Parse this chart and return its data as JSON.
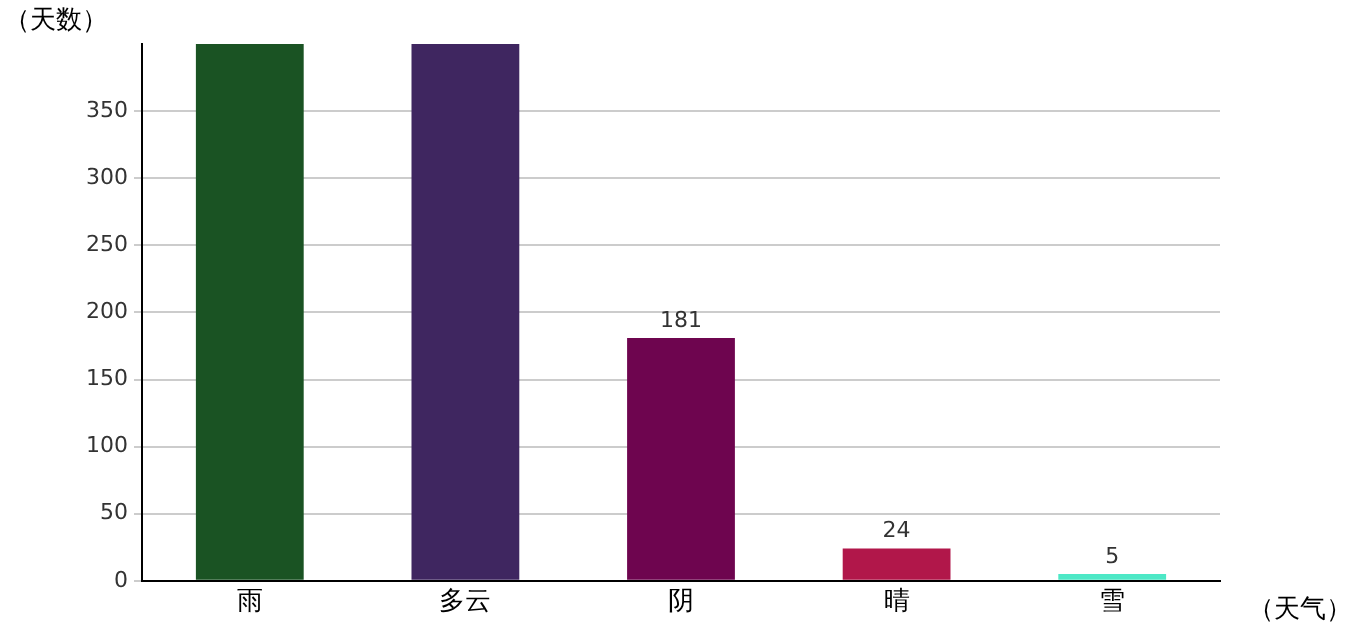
{
  "chart_data": {
    "type": "bar",
    "xlabel": "（天气）",
    "ylabel": "（天数）",
    "categories": [
      "雨",
      "多云",
      "阴",
      "晴",
      "雪"
    ],
    "values": [
      400,
      400,
      181,
      24,
      5
    ],
    "colors": [
      "#1a5323",
      "#3f2660",
      "#6e054f",
      "#b1174a",
      "#4de8c6"
    ],
    "value_labels": [
      null,
      null,
      "181",
      "24",
      "5"
    ],
    "ylim": [
      0,
      400
    ],
    "yticks": [
      0,
      50,
      100,
      150,
      200,
      250,
      300,
      350
    ],
    "grid": "y",
    "legend": false
  }
}
